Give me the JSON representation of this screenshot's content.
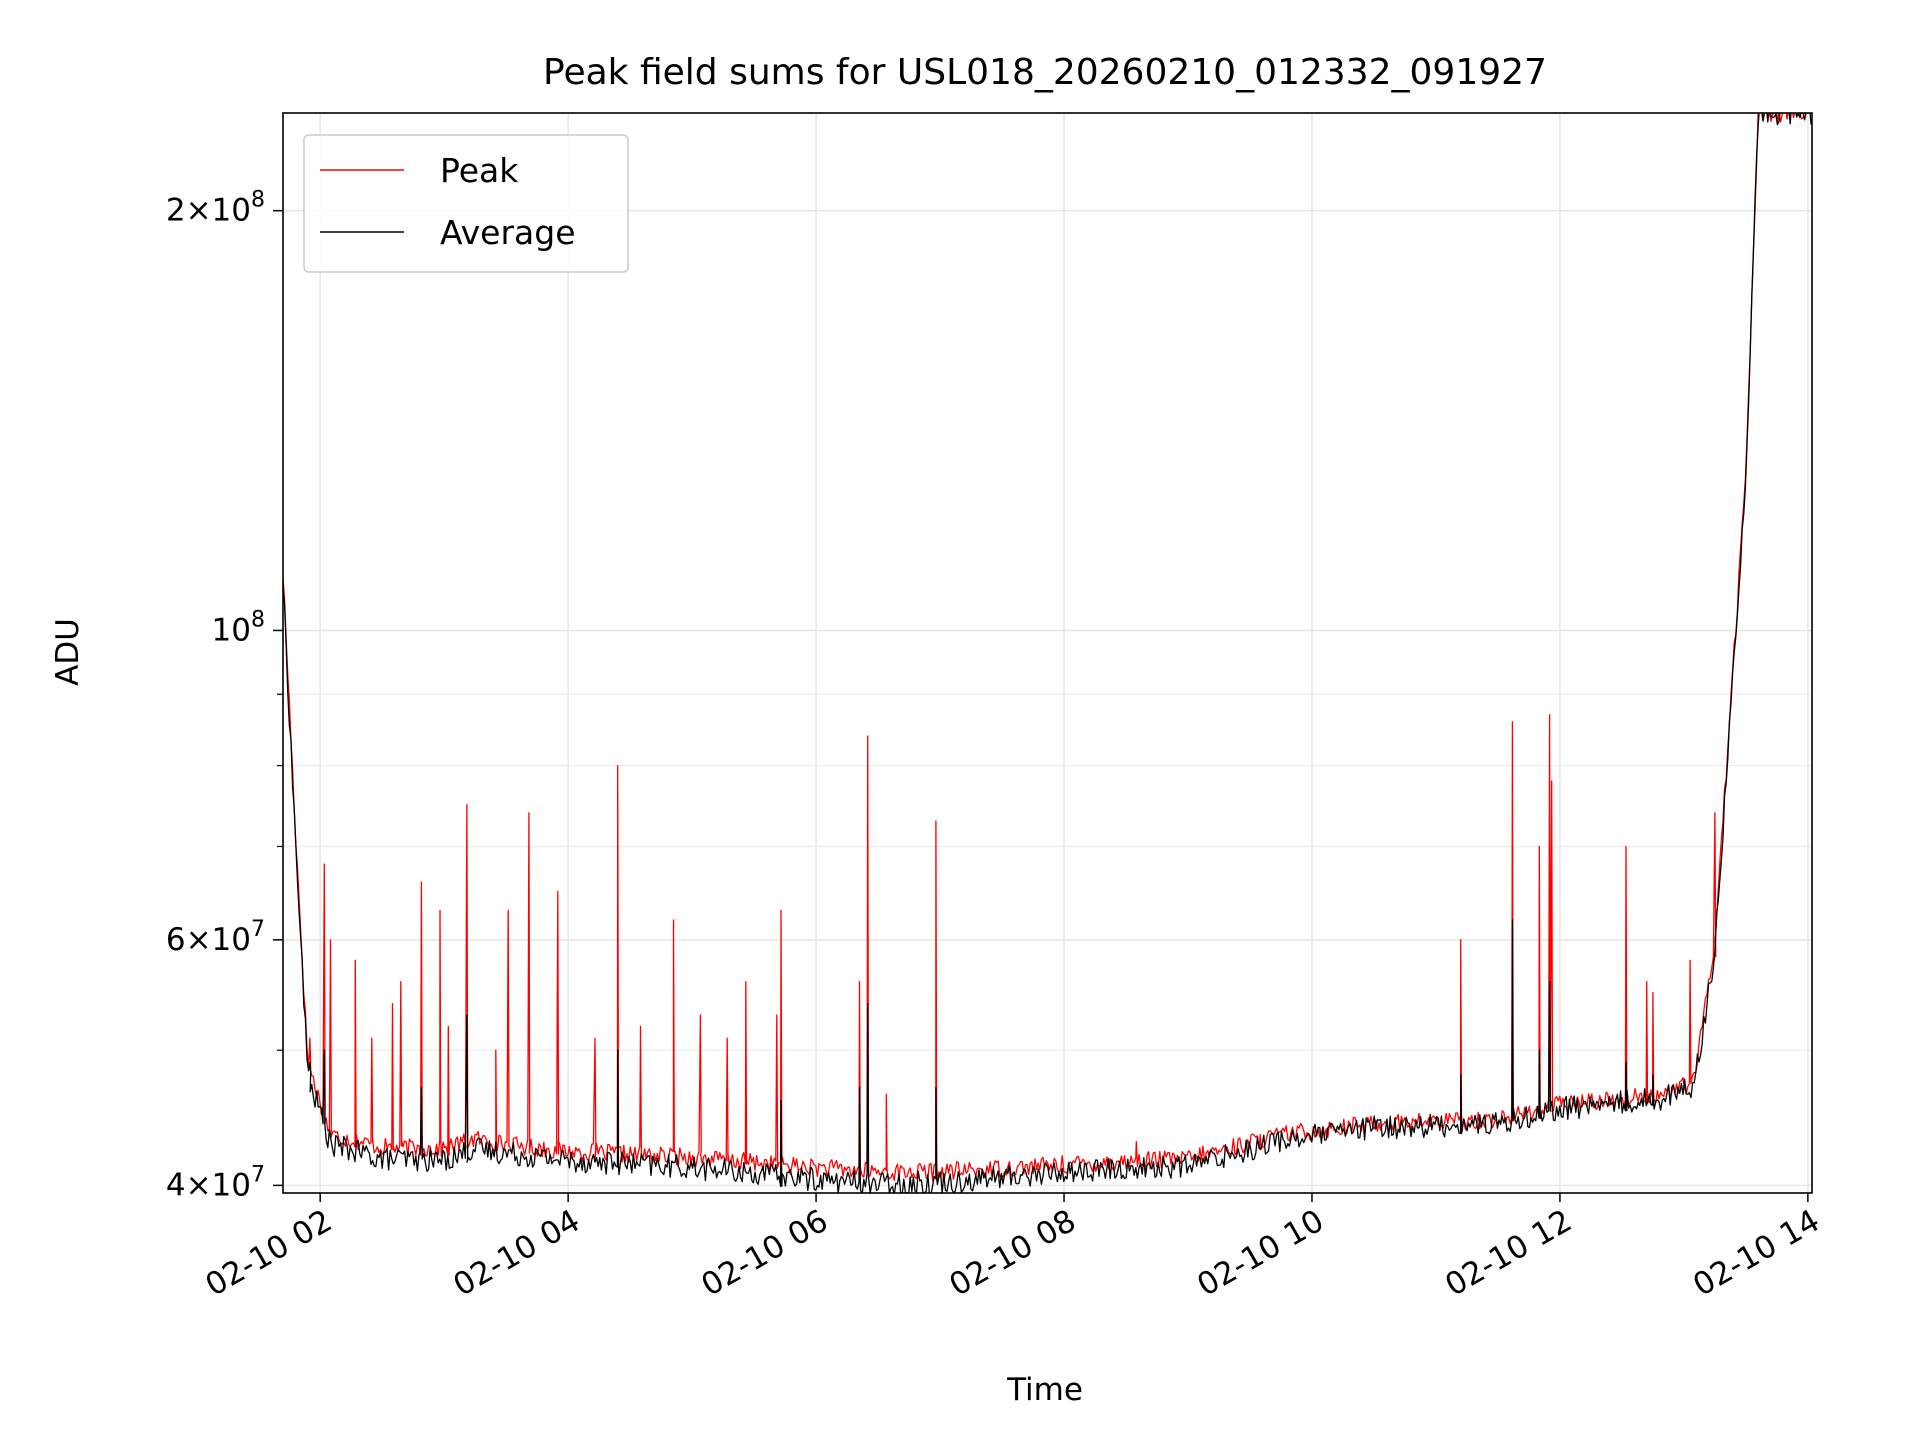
{
  "chart_data": {
    "type": "line",
    "title": "Peak field sums for USL018_20260210_012332_091927",
    "xlabel": "Time",
    "ylabel": "ADU",
    "xlim": [
      "2026-02-10 01:42",
      "2026-02-10 14:02"
    ],
    "ylim": [
      39500000,
      235000000
    ],
    "yscale": "log",
    "grid": true,
    "legend": "upper left",
    "x_ticks": [
      {
        "label": "02-10 02",
        "time": "2026-02-10 02:00"
      },
      {
        "label": "02-10 04",
        "time": "2026-02-10 04:00"
      },
      {
        "label": "02-10 06",
        "time": "2026-02-10 06:00"
      },
      {
        "label": "02-10 08",
        "time": "2026-02-10 08:00"
      },
      {
        "label": "02-10 10",
        "time": "2026-02-10 10:00"
      },
      {
        "label": "02-10 12",
        "time": "2026-02-10 12:00"
      },
      {
        "label": "02-10 14",
        "time": "2026-02-10 14:00"
      }
    ],
    "y_ticks": [
      {
        "base": "4",
        "exp": "7",
        "value": 40000000
      },
      {
        "base": "6",
        "exp": "7",
        "value": 60000000
      },
      {
        "base": "10",
        "exp": "8",
        "value": 100000000
      },
      {
        "base": "2",
        "exp": "8",
        "value": 200000000
      }
    ],
    "series": [
      {
        "name": "Peak",
        "color": "#ff0000",
        "baseline": [
          [
            "2026-02-10 01:42",
            110000000
          ],
          [
            "2026-02-10 01:48",
            72000000
          ],
          [
            "2026-02-10 01:54",
            49000000
          ],
          [
            "2026-02-10 02:05",
            43500000
          ],
          [
            "2026-02-10 02:30",
            42600000
          ],
          [
            "2026-02-10 03:00",
            42500000
          ],
          [
            "2026-02-10 03:15",
            43200000
          ],
          [
            "2026-02-10 03:30",
            42800000
          ],
          [
            "2026-02-10 04:00",
            42300000
          ],
          [
            "2026-02-10 05:00",
            41900000
          ],
          [
            "2026-02-10 06:00",
            41200000
          ],
          [
            "2026-02-10 06:30",
            40900000
          ],
          [
            "2026-02-10 07:00",
            40900000
          ],
          [
            "2026-02-10 08:00",
            41400000
          ],
          [
            "2026-02-10 09:00",
            41800000
          ],
          [
            "2026-02-10 09:45",
            43500000
          ],
          [
            "2026-02-10 10:30",
            44300000
          ],
          [
            "2026-02-10 11:30",
            44600000
          ],
          [
            "2026-02-10 12:00",
            45700000
          ],
          [
            "2026-02-10 12:50",
            46500000
          ],
          [
            "2026-02-10 13:05",
            47500000
          ],
          [
            "2026-02-10 13:15",
            60000000
          ],
          [
            "2026-02-10 13:25",
            100000000
          ],
          [
            "2026-02-10 13:30",
            130000000
          ],
          [
            "2026-02-10 13:36",
            235000000
          ],
          [
            "2026-02-10 14:00",
            235000000
          ]
        ],
        "spikes": [
          [
            "2026-02-10 01:55",
            51000000
          ],
          [
            "2026-02-10 02:02",
            68000000
          ],
          [
            "2026-02-10 02:05",
            60000000
          ],
          [
            "2026-02-10 02:17",
            58000000
          ],
          [
            "2026-02-10 02:25",
            51000000
          ],
          [
            "2026-02-10 02:35",
            54000000
          ],
          [
            "2026-02-10 02:39",
            56000000
          ],
          [
            "2026-02-10 02:49",
            66000000
          ],
          [
            "2026-02-10 02:58",
            63000000
          ],
          [
            "2026-02-10 03:02",
            52000000
          ],
          [
            "2026-02-10 03:11",
            75000000
          ],
          [
            "2026-02-10 03:25",
            50000000
          ],
          [
            "2026-02-10 03:31",
            63000000
          ],
          [
            "2026-02-10 03:41",
            74000000
          ],
          [
            "2026-02-10 03:55",
            65000000
          ],
          [
            "2026-02-10 04:13",
            51000000
          ],
          [
            "2026-02-10 04:24",
            80000000
          ],
          [
            "2026-02-10 04:35",
            52000000
          ],
          [
            "2026-02-10 04:51",
            62000000
          ],
          [
            "2026-02-10 05:04",
            53000000
          ],
          [
            "2026-02-10 05:17",
            51000000
          ],
          [
            "2026-02-10 05:26",
            56000000
          ],
          [
            "2026-02-10 05:41",
            53000000
          ],
          [
            "2026-02-10 05:43",
            63000000
          ],
          [
            "2026-02-10 06:21",
            56000000
          ],
          [
            "2026-02-10 06:25",
            84000000
          ],
          [
            "2026-02-10 06:34",
            46500000
          ],
          [
            "2026-02-10 06:58",
            73000000
          ],
          [
            "2026-02-10 08:35",
            43000000
          ],
          [
            "2026-02-10 09:35",
            43500000
          ],
          [
            "2026-02-10 11:12",
            60000000
          ],
          [
            "2026-02-10 11:37",
            86000000
          ],
          [
            "2026-02-10 11:50",
            70000000
          ],
          [
            "2026-02-10 11:55",
            87000000
          ],
          [
            "2026-02-10 11:56",
            78000000
          ],
          [
            "2026-02-10 12:32",
            70000000
          ],
          [
            "2026-02-10 12:42",
            56000000
          ],
          [
            "2026-02-10 12:45",
            55000000
          ],
          [
            "2026-02-10 13:03",
            58000000
          ],
          [
            "2026-02-10 13:15",
            74000000
          ]
        ]
      },
      {
        "name": "Average",
        "color": "#000000",
        "baseline": [
          [
            "2026-02-10 01:42",
            108000000
          ],
          [
            "2026-02-10 01:48",
            71000000
          ],
          [
            "2026-02-10 01:54",
            48000000
          ],
          [
            "2026-02-10 02:05",
            42800000
          ],
          [
            "2026-02-10 02:30",
            41800000
          ],
          [
            "2026-02-10 03:00",
            41700000
          ],
          [
            "2026-02-10 03:15",
            42500000
          ],
          [
            "2026-02-10 03:30",
            42200000
          ],
          [
            "2026-02-10 04:00",
            41700000
          ],
          [
            "2026-02-10 05:00",
            41200000
          ],
          [
            "2026-02-10 06:00",
            40400000
          ],
          [
            "2026-02-10 06:30",
            40100000
          ],
          [
            "2026-02-10 07:00",
            40200000
          ],
          [
            "2026-02-10 08:00",
            40900000
          ],
          [
            "2026-02-10 09:00",
            41300000
          ],
          [
            "2026-02-10 09:45",
            43100000
          ],
          [
            "2026-02-10 10:30",
            44000000
          ],
          [
            "2026-02-10 11:30",
            44300000
          ],
          [
            "2026-02-10 12:00",
            45400000
          ],
          [
            "2026-02-10 12:50",
            46200000
          ],
          [
            "2026-02-10 13:05",
            47200000
          ],
          [
            "2026-02-10 13:15",
            59000000
          ],
          [
            "2026-02-10 13:25",
            99000000
          ],
          [
            "2026-02-10 13:30",
            128000000
          ],
          [
            "2026-02-10 13:36",
            235000000
          ],
          [
            "2026-02-10 14:00",
            235000000
          ]
        ],
        "spikes": [
          [
            "2026-02-10 01:55",
            49000000
          ],
          [
            "2026-02-10 02:02",
            50000000
          ],
          [
            "2026-02-10 02:49",
            47000000
          ],
          [
            "2026-02-10 03:11",
            53000000
          ],
          [
            "2026-02-10 04:24",
            50000000
          ],
          [
            "2026-02-10 05:43",
            46000000
          ],
          [
            "2026-02-10 06:21",
            47000000
          ],
          [
            "2026-02-10 06:25",
            54000000
          ],
          [
            "2026-02-10 06:58",
            47000000
          ],
          [
            "2026-02-10 11:12",
            48000000
          ],
          [
            "2026-02-10 11:37",
            62000000
          ],
          [
            "2026-02-10 11:50",
            50000000
          ],
          [
            "2026-02-10 11:55",
            56000000
          ],
          [
            "2026-02-10 12:32",
            49000000
          ],
          [
            "2026-02-10 12:45",
            48000000
          ]
        ]
      }
    ]
  }
}
